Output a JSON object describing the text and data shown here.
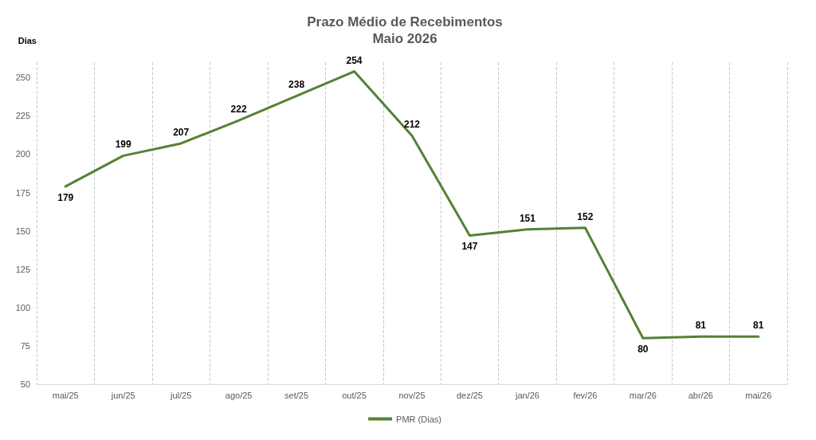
{
  "chart_data": {
    "type": "line",
    "title": "Prazo Médio de Recebimentos",
    "subtitle": "Maio 2026",
    "ylabel": "Dias",
    "categories": [
      "mai/25",
      "jun/25",
      "jul/25",
      "ago/25",
      "set/25",
      "out/25",
      "nov/25",
      "dez/25",
      "jan/26",
      "fev/26",
      "mar/26",
      "abr/26",
      "mai/26"
    ],
    "series": [
      {
        "name": "PMR (Dias)",
        "color": "#548235",
        "values": [
          179,
          199,
          207,
          222,
          238,
          254,
          212,
          147,
          151,
          152,
          80,
          81,
          81
        ]
      }
    ],
    "ylim": [
      50,
      260
    ],
    "yticks": [
      50,
      75,
      100,
      125,
      150,
      175,
      200,
      225,
      250
    ],
    "grid": "x",
    "legend": "bottom",
    "data_labels": true,
    "marker": "none",
    "line_style": "solid"
  }
}
